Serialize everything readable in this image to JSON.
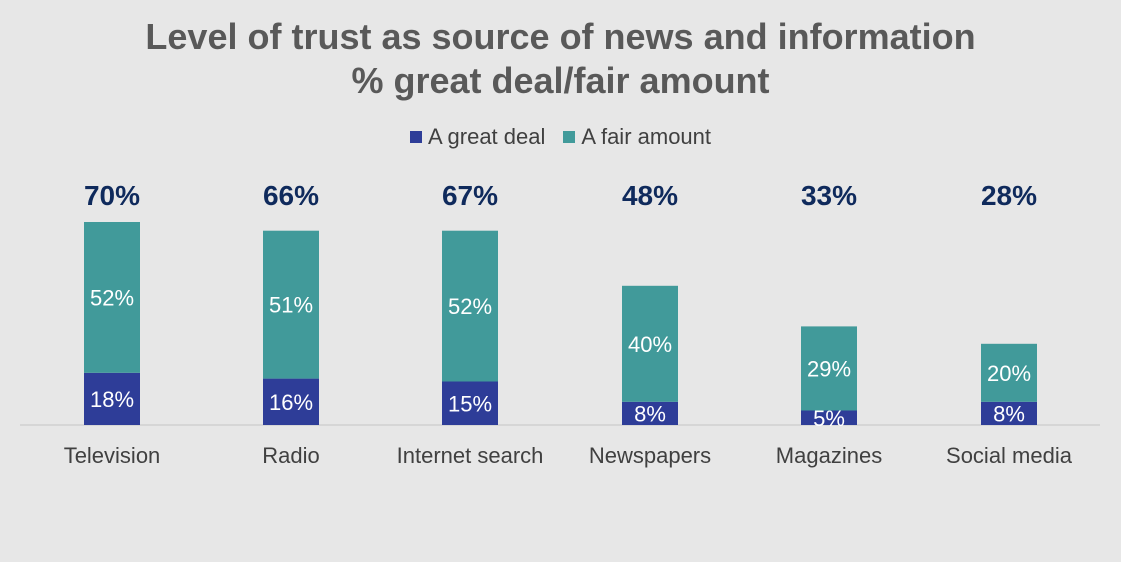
{
  "chart_data": {
    "type": "bar",
    "stacked": true,
    "title": "Level of trust as source of news and information",
    "subtitle": "% great deal/fair amount",
    "categories": [
      "Television",
      "Radio",
      "Internet search",
      "Newspapers",
      "Magazines",
      "Social media"
    ],
    "totals": [
      70,
      66,
      67,
      48,
      33,
      28
    ],
    "total_labels": [
      "70%",
      "66%",
      "67%",
      "48%",
      "33%",
      "28%"
    ],
    "series": [
      {
        "name": "A great deal",
        "color": "#2e3d98",
        "values": [
          18,
          16,
          15,
          8,
          5,
          8
        ],
        "labels": [
          "18%",
          "16%",
          "15%",
          "8%",
          "5%",
          "8%"
        ]
      },
      {
        "name": "A fair amount",
        "color": "#419a9a",
        "values": [
          52,
          51,
          52,
          40,
          29,
          20
        ],
        "labels": [
          "52%",
          "51%",
          "52%",
          "40%",
          "29%",
          "20%"
        ]
      }
    ],
    "legend_position": "top",
    "grid": false,
    "ylim": [
      0,
      100
    ]
  }
}
